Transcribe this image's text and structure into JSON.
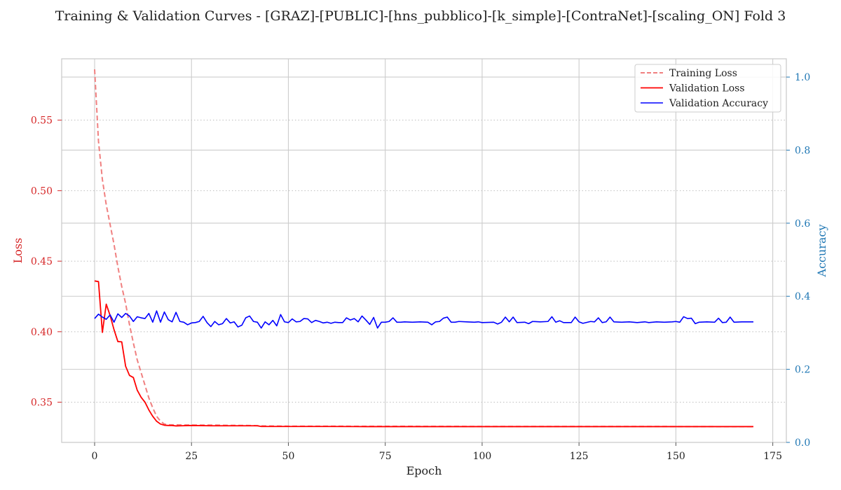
{
  "title": "Training & Validation Curves - [GRAZ]-[PUBLIC]-[hns_pubblico]-[k_simple]-[ContraNet]-[scaling_ON] Fold 3",
  "colors": {
    "training_loss": "#f08080",
    "validation_loss": "#ff0000",
    "validation_accuracy": "#0000ff",
    "left_axis": "#d62728",
    "right_axis": "#1f77b4",
    "grid": "#cccccc",
    "frame": "#cccccc",
    "text": "#222222"
  },
  "chart_data": {
    "type": "line",
    "title": "Training & Validation Curves - [GRAZ]-[PUBLIC]-[hns_pubblico]-[k_simple]-[ContraNet]-[scaling_ON] Fold 3",
    "xlabel": "Epoch",
    "ylabel_left": "Loss",
    "ylabel_right": "Accuracy",
    "xlim": [
      -8.5,
      178.5
    ],
    "ylim_left": [
      0.3215,
      0.5935
    ],
    "ylim_right": [
      0.0,
      1.05
    ],
    "xticks": [
      0,
      25,
      50,
      75,
      100,
      125,
      150,
      175
    ],
    "xtick_labels": [
      "0",
      "25",
      "50",
      "75",
      "100",
      "125",
      "150",
      "175"
    ],
    "yticks_left": [
      0.35,
      0.4,
      0.45,
      0.5,
      0.55
    ],
    "ytick_labels_left": [
      "0.35",
      "0.40",
      "0.45",
      "0.50",
      "0.55"
    ],
    "yticks_right": [
      0.0,
      0.2,
      0.4,
      0.6,
      0.8,
      1.0
    ],
    "ytick_labels_right": [
      "0.0",
      "0.2",
      "0.4",
      "0.6",
      "0.8",
      "1.0"
    ],
    "grid": true,
    "legend_position": "top-right",
    "series": [
      {
        "name": "Training Loss",
        "axis": "left",
        "style": "dashed",
        "points": [
          [
            0,
            0.586
          ],
          [
            1,
            0.535
          ],
          [
            2,
            0.508
          ],
          [
            3,
            0.49
          ],
          [
            4,
            0.476
          ],
          [
            5,
            0.462
          ],
          [
            6,
            0.446
          ],
          [
            7,
            0.432
          ],
          [
            8,
            0.42
          ],
          [
            9,
            0.405
          ],
          [
            10,
            0.392
          ],
          [
            11,
            0.38
          ],
          [
            12,
            0.371
          ],
          [
            13,
            0.362
          ],
          [
            14,
            0.353
          ],
          [
            15,
            0.346
          ],
          [
            16,
            0.34
          ],
          [
            17,
            0.3365
          ],
          [
            18,
            0.3345
          ],
          [
            19,
            0.334
          ],
          [
            20,
            0.334
          ],
          [
            25,
            0.3338
          ],
          [
            30,
            0.3338
          ],
          [
            35,
            0.3336
          ],
          [
            40,
            0.3335
          ],
          [
            43,
            0.3332
          ],
          [
            50,
            0.333
          ],
          [
            60,
            0.333
          ],
          [
            70,
            0.3329
          ],
          [
            80,
            0.3329
          ],
          [
            100,
            0.3328
          ],
          [
            120,
            0.3328
          ],
          [
            140,
            0.3328
          ],
          [
            160,
            0.3327
          ],
          [
            170,
            0.3327
          ]
        ]
      },
      {
        "name": "Validation Loss",
        "axis": "left",
        "style": "solid",
        "points": [
          [
            0,
            0.436
          ],
          [
            1,
            0.4355
          ],
          [
            2,
            0.3995
          ],
          [
            3,
            0.4195
          ],
          [
            4,
            0.4115
          ],
          [
            5,
            0.4015
          ],
          [
            6,
            0.393
          ],
          [
            7,
            0.3928
          ],
          [
            8,
            0.3755
          ],
          [
            9,
            0.369
          ],
          [
            10,
            0.3675
          ],
          [
            11,
            0.3585
          ],
          [
            12,
            0.3535
          ],
          [
            13,
            0.35
          ],
          [
            14,
            0.3445
          ],
          [
            15,
            0.34
          ],
          [
            16,
            0.3365
          ],
          [
            17,
            0.3345
          ],
          [
            18,
            0.3337
          ],
          [
            19,
            0.3335
          ],
          [
            20,
            0.3335
          ],
          [
            21,
            0.3332
          ],
          [
            25,
            0.3335
          ],
          [
            30,
            0.3333
          ],
          [
            35,
            0.3333
          ],
          [
            40,
            0.3333
          ],
          [
            42,
            0.3333
          ],
          [
            43,
            0.3328
          ],
          [
            50,
            0.3328
          ],
          [
            60,
            0.3328
          ],
          [
            70,
            0.3327
          ],
          [
            80,
            0.3327
          ],
          [
            100,
            0.3327
          ],
          [
            120,
            0.3327
          ],
          [
            140,
            0.3327
          ],
          [
            160,
            0.3327
          ],
          [
            170,
            0.3327
          ]
        ]
      },
      {
        "name": "Validation Accuracy",
        "axis": "right",
        "style": "solid",
        "points": [
          [
            0,
            0.339
          ],
          [
            1,
            0.351
          ],
          [
            2,
            0.343
          ],
          [
            3,
            0.337
          ],
          [
            4,
            0.349
          ],
          [
            5,
            0.329
          ],
          [
            6,
            0.352
          ],
          [
            7,
            0.342
          ],
          [
            8,
            0.353
          ],
          [
            9,
            0.346
          ],
          [
            10,
            0.331
          ],
          [
            11,
            0.344
          ],
          [
            12,
            0.341
          ],
          [
            13,
            0.339
          ],
          [
            14,
            0.353
          ],
          [
            15,
            0.329
          ],
          [
            16,
            0.36
          ],
          [
            17,
            0.329
          ],
          [
            18,
            0.357
          ],
          [
            19,
            0.336
          ],
          [
            20,
            0.33
          ],
          [
            21,
            0.356
          ],
          [
            22,
            0.331
          ],
          [
            23,
            0.329
          ],
          [
            24,
            0.322
          ],
          [
            25,
            0.327
          ],
          [
            26,
            0.328
          ],
          [
            27,
            0.331
          ],
          [
            28,
            0.345
          ],
          [
            29,
            0.328
          ],
          [
            30,
            0.317
          ],
          [
            31,
            0.331
          ],
          [
            32,
            0.322
          ],
          [
            33,
            0.325
          ],
          [
            34,
            0.339
          ],
          [
            35,
            0.327
          ],
          [
            36,
            0.33
          ],
          [
            37,
            0.316
          ],
          [
            38,
            0.321
          ],
          [
            39,
            0.341
          ],
          [
            40,
            0.346
          ],
          [
            41,
            0.331
          ],
          [
            42,
            0.329
          ],
          [
            43,
            0.313
          ],
          [
            44,
            0.33
          ],
          [
            45,
            0.322
          ],
          [
            46,
            0.334
          ],
          [
            47,
            0.319
          ],
          [
            48,
            0.35
          ],
          [
            49,
            0.33
          ],
          [
            50,
            0.328
          ],
          [
            51,
            0.338
          ],
          [
            52,
            0.33
          ],
          [
            53,
            0.331
          ],
          [
            54,
            0.339
          ],
          [
            55,
            0.338
          ],
          [
            56,
            0.328
          ],
          [
            57,
            0.334
          ],
          [
            58,
            0.331
          ],
          [
            59,
            0.327
          ],
          [
            60,
            0.329
          ],
          [
            61,
            0.326
          ],
          [
            62,
            0.329
          ],
          [
            63,
            0.328
          ],
          [
            64,
            0.328
          ],
          [
            65,
            0.341
          ],
          [
            66,
            0.335
          ],
          [
            67,
            0.339
          ],
          [
            68,
            0.33
          ],
          [
            69,
            0.346
          ],
          [
            70,
            0.335
          ],
          [
            71,
            0.323
          ],
          [
            72,
            0.342
          ],
          [
            73,
            0.313
          ],
          [
            74,
            0.329
          ],
          [
            75,
            0.329
          ],
          [
            76,
            0.331
          ],
          [
            77,
            0.341
          ],
          [
            78,
            0.329
          ],
          [
            79,
            0.329
          ],
          [
            80,
            0.33
          ],
          [
            82,
            0.329
          ],
          [
            84,
            0.33
          ],
          [
            86,
            0.329
          ],
          [
            87,
            0.322
          ],
          [
            88,
            0.33
          ],
          [
            89,
            0.331
          ],
          [
            90,
            0.34
          ],
          [
            91,
            0.343
          ],
          [
            92,
            0.329
          ],
          [
            93,
            0.329
          ],
          [
            94,
            0.331
          ],
          [
            96,
            0.33
          ],
          [
            98,
            0.329
          ],
          [
            99,
            0.33
          ],
          [
            100,
            0.328
          ],
          [
            103,
            0.329
          ],
          [
            104,
            0.324
          ],
          [
            105,
            0.329
          ],
          [
            106,
            0.343
          ],
          [
            107,
            0.33
          ],
          [
            108,
            0.343
          ],
          [
            109,
            0.328
          ],
          [
            111,
            0.329
          ],
          [
            112,
            0.325
          ],
          [
            113,
            0.331
          ],
          [
            115,
            0.33
          ],
          [
            117,
            0.331
          ],
          [
            118,
            0.344
          ],
          [
            119,
            0.329
          ],
          [
            120,
            0.333
          ],
          [
            121,
            0.328
          ],
          [
            123,
            0.328
          ],
          [
            124,
            0.343
          ],
          [
            125,
            0.33
          ],
          [
            126,
            0.326
          ],
          [
            128,
            0.331
          ],
          [
            129,
            0.33
          ],
          [
            130,
            0.341
          ],
          [
            131,
            0.328
          ],
          [
            132,
            0.33
          ],
          [
            133,
            0.343
          ],
          [
            134,
            0.33
          ],
          [
            136,
            0.329
          ],
          [
            138,
            0.33
          ],
          [
            140,
            0.328
          ],
          [
            142,
            0.33
          ],
          [
            143,
            0.328
          ],
          [
            145,
            0.33
          ],
          [
            147,
            0.329
          ],
          [
            149,
            0.33
          ],
          [
            150,
            0.331
          ],
          [
            151,
            0.329
          ],
          [
            152,
            0.344
          ],
          [
            153,
            0.339
          ],
          [
            154,
            0.34
          ],
          [
            155,
            0.325
          ],
          [
            156,
            0.329
          ],
          [
            158,
            0.33
          ],
          [
            160,
            0.329
          ],
          [
            161,
            0.34
          ],
          [
            162,
            0.328
          ],
          [
            163,
            0.329
          ],
          [
            164,
            0.343
          ],
          [
            165,
            0.329
          ],
          [
            167,
            0.33
          ],
          [
            170,
            0.33
          ]
        ]
      }
    ]
  }
}
